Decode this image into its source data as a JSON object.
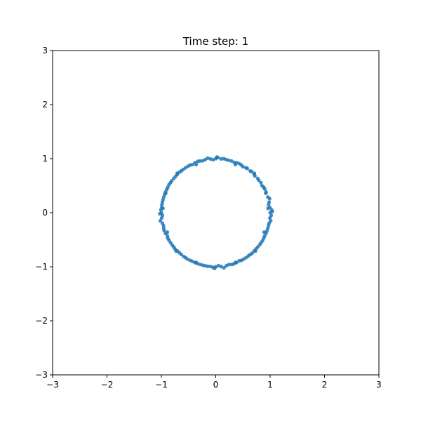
{
  "chart_data": {
    "type": "scatter",
    "title": "Time step: 1",
    "xlabel": "",
    "ylabel": "",
    "xlim": [
      -3,
      3
    ],
    "ylim": [
      -3,
      3
    ],
    "xticks": [
      -3,
      -2,
      -1,
      0,
      1,
      2,
      3
    ],
    "yticks": [
      -3,
      -2,
      -1,
      0,
      1,
      2,
      3
    ],
    "xtick_labels": [
      "−3",
      "−2",
      "−1",
      "0",
      "1",
      "2",
      "3"
    ],
    "ytick_labels": [
      "−3",
      "−2",
      "−1",
      "0",
      "1",
      "2",
      "3"
    ],
    "grid": false,
    "legend": "none",
    "series": [
      {
        "color": "#1f77b4",
        "marker": "circle",
        "points": [
          [
            1.0,
            0.0
          ],
          [
            0.995,
            0.098
          ],
          [
            0.981,
            0.195
          ],
          [
            0.957,
            0.29
          ],
          [
            0.924,
            0.383
          ],
          [
            0.882,
            0.471
          ],
          [
            0.831,
            0.556
          ],
          [
            0.773,
            0.634
          ],
          [
            0.707,
            0.707
          ],
          [
            0.634,
            0.773
          ],
          [
            0.556,
            0.831
          ],
          [
            0.471,
            0.882
          ],
          [
            0.383,
            0.924
          ],
          [
            0.29,
            0.957
          ],
          [
            0.195,
            0.981
          ],
          [
            0.098,
            0.995
          ],
          [
            0.0,
            1.0
          ],
          [
            -0.098,
            0.995
          ],
          [
            -0.195,
            0.981
          ],
          [
            -0.29,
            0.957
          ],
          [
            -0.383,
            0.924
          ],
          [
            -0.471,
            0.882
          ],
          [
            -0.556,
            0.831
          ],
          [
            -0.634,
            0.773
          ],
          [
            -0.707,
            0.707
          ],
          [
            -0.773,
            0.634
          ],
          [
            -0.831,
            0.556
          ],
          [
            -0.882,
            0.471
          ],
          [
            -0.924,
            0.383
          ],
          [
            -0.957,
            0.29
          ],
          [
            -0.981,
            0.195
          ],
          [
            -0.995,
            0.098
          ],
          [
            -1.0,
            0.0
          ],
          [
            -0.995,
            -0.098
          ],
          [
            -0.981,
            -0.195
          ],
          [
            -0.957,
            -0.29
          ],
          [
            -0.924,
            -0.383
          ],
          [
            -0.882,
            -0.471
          ],
          [
            -0.831,
            -0.556
          ],
          [
            -0.773,
            -0.634
          ],
          [
            -0.707,
            -0.707
          ],
          [
            -0.634,
            -0.773
          ],
          [
            -0.556,
            -0.831
          ],
          [
            -0.471,
            -0.882
          ],
          [
            -0.383,
            -0.924
          ],
          [
            -0.29,
            -0.957
          ],
          [
            -0.195,
            -0.981
          ],
          [
            -0.098,
            -0.995
          ],
          [
            0.0,
            -1.0
          ],
          [
            0.098,
            -0.995
          ],
          [
            0.195,
            -0.981
          ],
          [
            0.29,
            -0.957
          ],
          [
            0.383,
            -0.924
          ],
          [
            0.471,
            -0.882
          ],
          [
            0.556,
            -0.831
          ],
          [
            0.634,
            -0.773
          ],
          [
            0.707,
            -0.707
          ],
          [
            0.773,
            -0.634
          ],
          [
            0.831,
            -0.556
          ],
          [
            0.882,
            -0.471
          ],
          [
            0.924,
            -0.383
          ],
          [
            0.957,
            -0.29
          ],
          [
            0.981,
            -0.195
          ],
          [
            0.995,
            -0.098
          ],
          [
            1.03,
            0.05
          ],
          [
            0.97,
            0.15
          ],
          [
            0.99,
            0.26
          ],
          [
            0.9,
            0.44
          ],
          [
            0.85,
            0.5
          ],
          [
            0.79,
            0.6
          ],
          [
            0.72,
            0.68
          ],
          [
            0.66,
            0.76
          ],
          [
            0.58,
            0.82
          ],
          [
            0.5,
            0.85
          ],
          [
            0.43,
            0.91
          ],
          [
            0.34,
            0.93
          ],
          [
            0.24,
            0.97
          ],
          [
            0.15,
            1.0
          ],
          [
            0.04,
            1.02
          ],
          [
            -0.05,
            0.98
          ],
          [
            -0.15,
            1.01
          ],
          [
            -0.24,
            0.96
          ],
          [
            -0.33,
            0.95
          ],
          [
            -0.43,
            0.89
          ],
          [
            -0.51,
            0.86
          ],
          [
            -0.6,
            0.8
          ],
          [
            -0.67,
            0.75
          ],
          [
            -0.74,
            0.67
          ],
          [
            -0.81,
            0.59
          ],
          [
            -0.86,
            0.52
          ],
          [
            -0.9,
            0.43
          ],
          [
            -0.94,
            0.34
          ],
          [
            -0.97,
            0.24
          ],
          [
            -0.99,
            0.15
          ],
          [
            -1.01,
            0.05
          ],
          [
            -0.98,
            -0.05
          ],
          [
            -1.02,
            -0.15
          ],
          [
            -0.96,
            -0.24
          ],
          [
            -0.95,
            -0.33
          ],
          [
            -0.89,
            -0.43
          ],
          [
            -0.86,
            -0.51
          ],
          [
            -0.8,
            -0.6
          ],
          [
            -0.75,
            -0.67
          ],
          [
            -0.67,
            -0.74
          ],
          [
            -0.59,
            -0.81
          ],
          [
            -0.52,
            -0.86
          ],
          [
            -0.43,
            -0.9
          ],
          [
            -0.34,
            -0.94
          ],
          [
            -0.24,
            -0.97
          ],
          [
            -0.15,
            -0.99
          ],
          [
            -0.05,
            -1.01
          ],
          [
            0.05,
            -0.98
          ],
          [
            0.15,
            -1.02
          ],
          [
            0.24,
            -0.96
          ],
          [
            0.33,
            -0.95
          ],
          [
            0.43,
            -0.89
          ],
          [
            0.51,
            -0.86
          ],
          [
            0.6,
            -0.8
          ],
          [
            0.67,
            -0.75
          ],
          [
            0.74,
            -0.67
          ],
          [
            0.81,
            -0.59
          ],
          [
            0.86,
            -0.52
          ],
          [
            0.9,
            -0.43
          ],
          [
            0.94,
            -0.34
          ],
          [
            0.97,
            -0.24
          ],
          [
            1.01,
            -0.15
          ],
          [
            1.02,
            -0.05
          ],
          [
            1.04,
            0.02
          ],
          [
            0.96,
            0.08
          ],
          [
            -1.03,
            -0.02
          ],
          [
            -0.97,
            0.08
          ],
          [
            0.02,
            1.03
          ],
          [
            -0.02,
            -1.03
          ],
          [
            0.71,
            0.73
          ],
          [
            -0.71,
            0.73
          ],
          [
            -0.73,
            -0.71
          ],
          [
            0.73,
            -0.71
          ],
          [
            0.36,
            0.89
          ],
          [
            -0.36,
            0.89
          ],
          [
            -0.89,
            -0.36
          ],
          [
            0.89,
            -0.36
          ],
          [
            0.92,
            0.36
          ],
          [
            -0.92,
            0.36
          ],
          [
            0.36,
            -0.92
          ],
          [
            -0.36,
            -0.92
          ]
        ]
      }
    ]
  }
}
